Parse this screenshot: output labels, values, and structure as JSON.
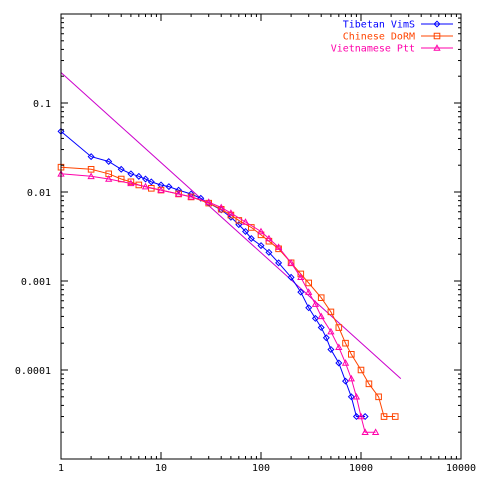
{
  "chart_data": {
    "type": "scatter",
    "x_scale": "log",
    "y_scale": "log",
    "xlim": [
      1,
      10000
    ],
    "ylim": [
      1e-05,
      1
    ],
    "grid": false,
    "legend_position": "top-right",
    "x_ticks": [
      {
        "value": 1,
        "label": "1"
      },
      {
        "value": 10,
        "label": "10"
      },
      {
        "value": 100,
        "label": "100"
      },
      {
        "value": 1000,
        "label": "1000"
      },
      {
        "value": 10000,
        "label": "10000"
      }
    ],
    "y_ticks": [
      {
        "value": 0.1,
        "label": "0.1"
      },
      {
        "value": 0.01,
        "label": "0.01"
      },
      {
        "value": 0.001,
        "label": "0.001"
      },
      {
        "value": 0.0001,
        "label": "0.0001"
      }
    ],
    "reference_line": {
      "color": "#cc00cc",
      "points": [
        [
          1,
          0.22
        ],
        [
          2500,
          8e-05
        ]
      ]
    },
    "series": [
      {
        "name": "Tibetan VimS",
        "color": "#0000ff",
        "marker": "diamond",
        "points": [
          [
            1,
            0.048
          ],
          [
            2,
            0.025
          ],
          [
            3,
            0.022
          ],
          [
            4,
            0.018
          ],
          [
            5,
            0.016
          ],
          [
            6,
            0.015
          ],
          [
            7,
            0.014
          ],
          [
            8,
            0.013
          ],
          [
            10,
            0.012
          ],
          [
            12,
            0.0115
          ],
          [
            15,
            0.0105
          ],
          [
            20,
            0.0095
          ],
          [
            25,
            0.0085
          ],
          [
            30,
            0.0075
          ],
          [
            40,
            0.0063
          ],
          [
            50,
            0.0052
          ],
          [
            60,
            0.0043
          ],
          [
            70,
            0.0036
          ],
          [
            80,
            0.003
          ],
          [
            100,
            0.0025
          ],
          [
            120,
            0.0021
          ],
          [
            150,
            0.0016
          ],
          [
            200,
            0.0011
          ],
          [
            250,
            0.00075
          ],
          [
            300,
            0.0005
          ],
          [
            350,
            0.00038
          ],
          [
            400,
            0.0003
          ],
          [
            450,
            0.00023
          ],
          [
            500,
            0.00017
          ],
          [
            600,
            0.00012
          ],
          [
            700,
            7.5e-05
          ],
          [
            800,
            5e-05
          ],
          [
            900,
            3e-05
          ],
          [
            1100,
            3e-05
          ]
        ]
      },
      {
        "name": "Chinese DoRM",
        "color": "#ff4400",
        "marker": "square",
        "points": [
          [
            1,
            0.019
          ],
          [
            2,
            0.018
          ],
          [
            3,
            0.016
          ],
          [
            4,
            0.014
          ],
          [
            5,
            0.013
          ],
          [
            6,
            0.012
          ],
          [
            8,
            0.011
          ],
          [
            10,
            0.0105
          ],
          [
            15,
            0.0095
          ],
          [
            20,
            0.0088
          ],
          [
            30,
            0.0075
          ],
          [
            40,
            0.0064
          ],
          [
            50,
            0.0055
          ],
          [
            60,
            0.0048
          ],
          [
            80,
            0.004
          ],
          [
            100,
            0.0033
          ],
          [
            120,
            0.0028
          ],
          [
            150,
            0.0023
          ],
          [
            200,
            0.0016
          ],
          [
            250,
            0.0012
          ],
          [
            300,
            0.00095
          ],
          [
            400,
            0.00065
          ],
          [
            500,
            0.00045
          ],
          [
            600,
            0.0003
          ],
          [
            700,
            0.0002
          ],
          [
            800,
            0.00015
          ],
          [
            1000,
            0.0001
          ],
          [
            1200,
            7e-05
          ],
          [
            1500,
            5e-05
          ],
          [
            1700,
            3e-05
          ],
          [
            2200,
            3e-05
          ]
        ]
      },
      {
        "name": "Vietnamese Ptt",
        "color": "#ff00aa",
        "marker": "triangle",
        "points": [
          [
            1,
            0.016
          ],
          [
            2,
            0.015
          ],
          [
            3,
            0.014
          ],
          [
            5,
            0.0125
          ],
          [
            7,
            0.0115
          ],
          [
            10,
            0.0105
          ],
          [
            15,
            0.0095
          ],
          [
            20,
            0.0088
          ],
          [
            30,
            0.0077
          ],
          [
            40,
            0.0067
          ],
          [
            50,
            0.0058
          ],
          [
            70,
            0.0046
          ],
          [
            100,
            0.0036
          ],
          [
            120,
            0.003
          ],
          [
            150,
            0.0024
          ],
          [
            200,
            0.0016
          ],
          [
            250,
            0.0011
          ],
          [
            300,
            0.00075
          ],
          [
            350,
            0.00055
          ],
          [
            400,
            0.0004
          ],
          [
            500,
            0.00027
          ],
          [
            600,
            0.00018
          ],
          [
            700,
            0.00012
          ],
          [
            800,
            8e-05
          ],
          [
            900,
            5e-05
          ],
          [
            1000,
            3e-05
          ],
          [
            1100,
            2e-05
          ],
          [
            1400,
            2e-05
          ]
        ]
      }
    ]
  }
}
